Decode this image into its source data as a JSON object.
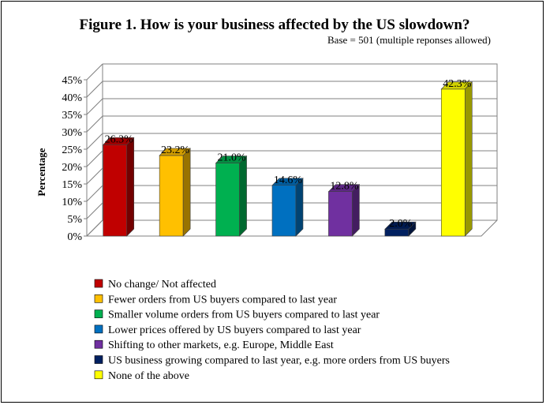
{
  "chart_data": {
    "type": "bar",
    "title": "Figure 1. How is your business affected by the US slowdown?",
    "subtitle": "Base = 501 (multiple reponses allowed)",
    "ylabel": "Percentage",
    "xlabel": "",
    "ylim": [
      0,
      45
    ],
    "ytick_step": 5,
    "ytick_suffix": "%",
    "grid": true,
    "legend_position": "bottom",
    "categories": [
      "No change/ Not affected",
      "Fewer orders from US buyers compared to last year",
      "Smaller volume orders from US buyers compared to last year",
      "Lower prices offered by US buyers compared to last year",
      "Shifting to other markets, e.g. Europe, Middle East",
      "US business growing compared to last year, e.g. more orders from US buyers",
      "None of the above"
    ],
    "values": [
      26.3,
      23.2,
      21.0,
      14.6,
      12.8,
      2.0,
      42.3
    ],
    "value_labels": [
      "26.3%",
      "23.2%",
      "21.0%",
      "14.6%",
      "12.8%",
      "2.0%",
      "42.3%"
    ],
    "colors": [
      "#c00000",
      "#ffc000",
      "#00b050",
      "#0070c0",
      "#7030a0",
      "#002060",
      "#ffff00"
    ]
  }
}
